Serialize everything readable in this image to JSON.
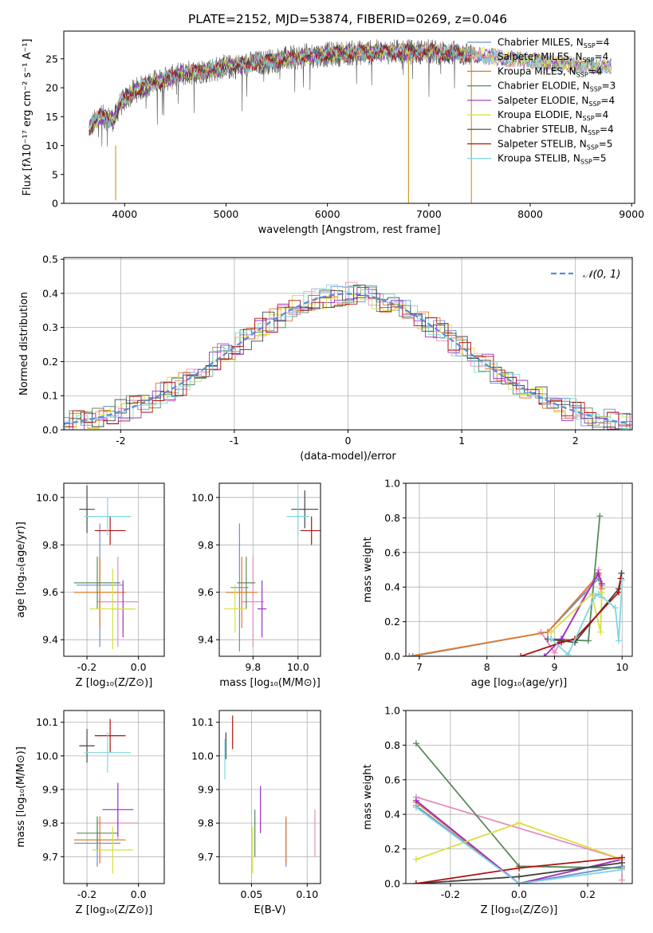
{
  "figure": {
    "title": "PLATE=2152, MJD=53874, FIBERID=0269, z=0.046"
  },
  "chart_data": [
    {
      "id": "spectrum",
      "type": "line",
      "title": "PLATE=2152, MJD=53874, FIBERID=0269, z=0.046",
      "xlabel": "wavelength [Angstrom, rest frame]",
      "ylabel": "Flux [fλ10⁻¹⁷ erg cm⁻² s⁻¹ A⁻¹]",
      "xlim": [
        3400,
        9030
      ],
      "ylim": [
        0,
        29.8
      ],
      "xticks": [
        4000,
        5000,
        6000,
        7000,
        8000,
        9000
      ],
      "yticks": [
        0,
        5,
        10,
        15,
        20,
        25
      ],
      "grid": false,
      "legend_position": "top-right",
      "legend": [
        {
          "text": "Chabrier MILES, N_SSP=4",
          "color": "#6a8fcf"
        },
        {
          "text": "Salpeter MILES, N_SSP=4",
          "color": "#e58ec0"
        },
        {
          "text": "Kroupa MILES, N_SSP=4",
          "color": "#e07b25"
        },
        {
          "text": "Chabrier ELODIE, N_SSP=3",
          "color": "#5a8a5a"
        },
        {
          "text": "Salpeter ELODIE, N_SSP=4",
          "color": "#9b30c8"
        },
        {
          "text": "Kroupa ELODIE, N_SSP=4",
          "color": "#d8e040"
        },
        {
          "text": "Chabrier STELIB, N_SSP=4",
          "color": "#444444"
        },
        {
          "text": "Salpeter STELIB, N_SSP=5",
          "color": "#b01010"
        },
        {
          "text": "Kroupa STELIB, N_SSP=5",
          "color": "#7fd6e0"
        }
      ],
      "continuum": [
        [
          3650,
          13
        ],
        [
          3750,
          15
        ],
        [
          3900,
          14.5
        ],
        [
          3950,
          17
        ],
        [
          4100,
          19.5
        ],
        [
          4300,
          21
        ],
        [
          4600,
          22.5
        ],
        [
          5000,
          23.5
        ],
        [
          5400,
          24.5
        ],
        [
          5800,
          25.5
        ],
        [
          6200,
          26
        ],
        [
          6600,
          26.2
        ],
        [
          7000,
          26.2
        ],
        [
          7400,
          25.8
        ],
        [
          7800,
          25
        ],
        [
          8200,
          24.3
        ],
        [
          8600,
          23.8
        ],
        [
          9000,
          23.5
        ]
      ],
      "model_start": 3650,
      "model_end": 8800,
      "data_end": 7420,
      "glitches": [
        [
          3912,
          0.5,
          10
        ],
        [
          6800,
          0,
          26
        ],
        [
          7420,
          0,
          26
        ]
      ]
    },
    {
      "id": "residual-histogram",
      "type": "histogram",
      "xlabel": "(data-model)/error",
      "ylabel": "Normed distribution",
      "xlim": [
        -2.5,
        2.5
      ],
      "ylim": [
        0,
        0.505
      ],
      "xticks": [
        -2,
        -1,
        0,
        1,
        2
      ],
      "yticks": [
        0.0,
        0.1,
        0.2,
        0.3,
        0.4,
        0.5
      ],
      "bin_width": 0.1,
      "grid": true,
      "legend_position": "top-right",
      "legend": [
        {
          "text": "𝒩(0, 1)",
          "color": "#5b8bd9",
          "dashed": true
        }
      ],
      "normal_curve": {
        "mean": 0,
        "sigma": 1
      }
    },
    {
      "id": "age-vs-z",
      "type": "errorbar",
      "xlabel": "Z [log₁₀(Z/Z⊙)]",
      "ylabel": "age  [log₁₀(age/yr)]",
      "xlim": [
        -0.29,
        0.1
      ],
      "ylim": [
        9.33,
        10.06
      ],
      "xticks": [
        -0.2,
        0.0
      ],
      "yticks": [
        9.4,
        9.6,
        9.8,
        10.0
      ],
      "grid": true,
      "points": [
        {
          "x": -0.15,
          "y": 9.63,
          "xerr": 0.09,
          "yerr": 0.26,
          "color": "#6a8fcf"
        },
        {
          "x": -0.08,
          "y": 9.56,
          "xerr": 0.08,
          "yerr": 0.19,
          "color": "#e58ec0"
        },
        {
          "x": -0.15,
          "y": 9.6,
          "xerr": 0.1,
          "yerr": 0.15,
          "color": "#e07b25"
        },
        {
          "x": -0.16,
          "y": 9.64,
          "xerr": 0.09,
          "yerr": 0.11,
          "color": "#5a8a5a"
        },
        {
          "x": -0.06,
          "y": 9.53,
          "xerr": 0.04,
          "yerr": 0.12,
          "color": "#9b30c8"
        },
        {
          "x": -0.1,
          "y": 9.53,
          "xerr": 0.09,
          "yerr": 0.17,
          "color": "#d8e040"
        },
        {
          "x": -0.2,
          "y": 9.95,
          "xerr": 0.03,
          "yerr": 0.1,
          "color": "#444444"
        },
        {
          "x": -0.11,
          "y": 9.86,
          "xerr": 0.06,
          "yerr": 0.06,
          "color": "#b01010"
        },
        {
          "x": -0.12,
          "y": 9.92,
          "xerr": 0.09,
          "yerr": 0.08,
          "color": "#7fd6e0"
        }
      ]
    },
    {
      "id": "age-vs-mass",
      "type": "errorbar",
      "xlabel": "mass [log₁₀(M/M⊙)]",
      "ylabel": "",
      "xlim": [
        9.65,
        10.1
      ],
      "ylim": [
        9.33,
        10.06
      ],
      "xticks": [
        9.8,
        10.0
      ],
      "yticks": [
        9.4,
        9.6,
        9.8,
        10.0
      ],
      "grid": true,
      "points": [
        {
          "x": 9.74,
          "y": 9.62,
          "xerr": 0.04,
          "yerr": 0.27,
          "color": "#6a8fcf"
        },
        {
          "x": 9.8,
          "y": 9.56,
          "xerr": 0.05,
          "yerr": 0.19,
          "color": "#e58ec0"
        },
        {
          "x": 9.75,
          "y": 9.6,
          "xerr": 0.07,
          "yerr": 0.15,
          "color": "#e07b25"
        },
        {
          "x": 9.77,
          "y": 9.64,
          "xerr": 0.04,
          "yerr": 0.11,
          "color": "#5a8a5a"
        },
        {
          "x": 9.84,
          "y": 9.53,
          "xerr": 0.02,
          "yerr": 0.12,
          "color": "#9b30c8"
        },
        {
          "x": 9.72,
          "y": 9.53,
          "xerr": 0.05,
          "yerr": 0.1,
          "color": "#d8e040"
        },
        {
          "x": 10.03,
          "y": 9.95,
          "xerr": 0.06,
          "yerr": 0.08,
          "color": "#444444"
        },
        {
          "x": 10.06,
          "y": 9.86,
          "xerr": 0.05,
          "yerr": 0.06,
          "color": "#b01010"
        },
        {
          "x": 10.0,
          "y": 9.92,
          "xerr": 0.05,
          "yerr": 0.08,
          "color": "#7fd6e0"
        }
      ]
    },
    {
      "id": "mass-weight-vs-age",
      "type": "line",
      "xlabel": "age  [log₁₀(age/yr)]",
      "ylabel": "mass weight",
      "xlim": [
        6.8,
        10.15
      ],
      "ylim": [
        0,
        1
      ],
      "xticks": [
        7,
        8,
        9,
        10
      ],
      "yticks": [
        0.0,
        0.2,
        0.4,
        0.6,
        0.8,
        1.0
      ],
      "grid": true,
      "series": [
        {
          "color": "#6a8fcf",
          "points": [
            [
              6.9,
              0.0
            ],
            [
              8.9,
              0.14
            ],
            [
              9.65,
              0.45
            ],
            [
              9.7,
              0.41
            ]
          ]
        },
        {
          "color": "#e58ec0",
          "points": [
            [
              8.8,
              0.14
            ],
            [
              9.0,
              0.02
            ],
            [
              9.65,
              0.5
            ],
            [
              9.7,
              0.34
            ]
          ]
        },
        {
          "color": "#e07b25",
          "points": [
            [
              6.85,
              0.0
            ],
            [
              8.9,
              0.14
            ],
            [
              9.65,
              0.47
            ],
            [
              9.7,
              0.39
            ]
          ]
        },
        {
          "color": "#5a8a5a",
          "points": [
            [
              8.95,
              0.1
            ],
            [
              9.5,
              0.09
            ],
            [
              9.67,
              0.81
            ]
          ]
        },
        {
          "color": "#9b30c8",
          "points": [
            [
              8.85,
              0.0
            ],
            [
              9.1,
              0.1
            ],
            [
              9.65,
              0.48
            ],
            [
              9.7,
              0.42
            ]
          ]
        },
        {
          "color": "#d8e040",
          "points": [
            [
              8.95,
              0.14
            ],
            [
              9.55,
              0.36
            ],
            [
              9.68,
              0.14
            ],
            [
              9.7,
              0.37
            ]
          ]
        },
        {
          "color": "#444444",
          "points": [
            [
              8.9,
              0.1
            ],
            [
              9.3,
              0.08
            ],
            [
              9.95,
              0.39
            ],
            [
              9.99,
              0.48
            ]
          ]
        },
        {
          "color": "#b01010",
          "points": [
            [
              8.5,
              0.0
            ],
            [
              9.1,
              0.08
            ],
            [
              9.3,
              0.1
            ],
            [
              9.95,
              0.37
            ],
            [
              9.98,
              0.45
            ]
          ]
        },
        {
          "color": "#7fd6e0",
          "points": [
            [
              8.95,
              0.1
            ],
            [
              9.2,
              0.01
            ],
            [
              9.6,
              0.35
            ],
            [
              9.65,
              0.36
            ],
            [
              9.9,
              0.28
            ],
            [
              9.95,
              0.09
            ],
            [
              10.0,
              0.44
            ]
          ]
        }
      ]
    },
    {
      "id": "mass-vs-z",
      "type": "errorbar",
      "xlabel": "Z [log₁₀(Z/Z⊙)]",
      "ylabel": "mass [log₁₀(M/M⊙)]",
      "xlim": [
        -0.29,
        0.1
      ],
      "ylim": [
        9.62,
        10.135
      ],
      "xticks": [
        -0.2,
        0.0
      ],
      "yticks": [
        9.7,
        9.8,
        9.9,
        10.0,
        10.1
      ],
      "grid": true,
      "points": [
        {
          "x": -0.16,
          "y": 9.74,
          "xerr": 0.09,
          "yerr": 0.07,
          "color": "#6a8fcf"
        },
        {
          "x": -0.08,
          "y": 9.8,
          "xerr": 0.08,
          "yerr": 0.05,
          "color": "#e58ec0"
        },
        {
          "x": -0.15,
          "y": 9.75,
          "xerr": 0.1,
          "yerr": 0.07,
          "color": "#e07b25"
        },
        {
          "x": -0.16,
          "y": 9.77,
          "xerr": 0.08,
          "yerr": 0.05,
          "color": "#5a8a5a"
        },
        {
          "x": -0.08,
          "y": 9.84,
          "xerr": 0.06,
          "yerr": 0.08,
          "color": "#9b30c8"
        },
        {
          "x": -0.1,
          "y": 9.72,
          "xerr": 0.08,
          "yerr": 0.07,
          "color": "#d8e040"
        },
        {
          "x": -0.2,
          "y": 10.03,
          "xerr": 0.03,
          "yerr": 0.05,
          "color": "#444444"
        },
        {
          "x": -0.11,
          "y": 10.06,
          "xerr": 0.06,
          "yerr": 0.05,
          "color": "#b01010"
        },
        {
          "x": -0.12,
          "y": 10.01,
          "xerr": 0.09,
          "yerr": 0.06,
          "color": "#7fd6e0"
        }
      ]
    },
    {
      "id": "mass-vs-ebv",
      "type": "errorbar",
      "xlabel": "E(B-V)",
      "ylabel": "",
      "xlim": [
        0.021,
        0.112
      ],
      "ylim": [
        9.62,
        10.135
      ],
      "xticks": [
        0.05,
        0.1
      ],
      "yticks": [
        9.7,
        9.8,
        9.9,
        10.0,
        10.1
      ],
      "grid": true,
      "points": [
        {
          "x": 0.081,
          "y": 9.74,
          "xerr": 0,
          "yerr": 0.07,
          "color": "#6a8fcf"
        },
        {
          "x": 0.107,
          "y": 9.77,
          "xerr": 0,
          "yerr": 0.07,
          "color": "#e58ec0"
        },
        {
          "x": 0.081,
          "y": 9.75,
          "xerr": 0,
          "yerr": 0.07,
          "color": "#e07b25"
        },
        {
          "x": 0.053,
          "y": 9.77,
          "xerr": 0,
          "yerr": 0.07,
          "color": "#5a8a5a"
        },
        {
          "x": 0.058,
          "y": 9.84,
          "xerr": 0,
          "yerr": 0.07,
          "color": "#9b30c8"
        },
        {
          "x": 0.051,
          "y": 9.72,
          "xerr": 0,
          "yerr": 0.07,
          "color": "#d8e040"
        },
        {
          "x": 0.027,
          "y": 10.03,
          "xerr": 0,
          "yerr": 0.04,
          "color": "#444444"
        },
        {
          "x": 0.033,
          "y": 10.07,
          "xerr": 0,
          "yerr": 0.05,
          "color": "#b01010"
        },
        {
          "x": 0.026,
          "y": 9.99,
          "xerr": 0,
          "yerr": 0.06,
          "color": "#7fd6e0"
        }
      ]
    },
    {
      "id": "mass-weight-vs-z",
      "type": "line",
      "xlabel": "Z [log₁₀(Z/Z⊙)]",
      "ylabel": "mass weight",
      "xlim": [
        -0.33,
        0.33
      ],
      "ylim": [
        0,
        1
      ],
      "xticks": [
        -0.2,
        0.0,
        0.2
      ],
      "yticks": [
        0.0,
        0.2,
        0.4,
        0.6,
        0.8,
        1.0
      ],
      "grid": true,
      "series": [
        {
          "color": "#6a8fcf",
          "points": [
            [
              -0.3,
              0.45
            ],
            [
              0.0,
              0.0
            ],
            [
              0.3,
              0.1
            ]
          ]
        },
        {
          "color": "#e58ec0",
          "points": [
            [
              -0.3,
              0.5
            ],
            [
              0.3,
              0.14
            ],
            [
              0.3,
              0.02
            ]
          ]
        },
        {
          "color": "#e07b25",
          "points": [
            [
              -0.3,
              0.47
            ],
            [
              0.0,
              0.0
            ],
            [
              0.3,
              0.14
            ]
          ]
        },
        {
          "color": "#5a8a5a",
          "points": [
            [
              -0.3,
              0.81
            ],
            [
              0.0,
              0.1
            ],
            [
              0.3,
              0.09
            ]
          ]
        },
        {
          "color": "#9b30c8",
          "points": [
            [
              -0.3,
              0.48
            ],
            [
              0.0,
              0.0
            ],
            [
              0.3,
              0.14
            ]
          ]
        },
        {
          "color": "#d8e040",
          "points": [
            [
              -0.3,
              0.14
            ],
            [
              0.0,
              0.35
            ],
            [
              0.3,
              0.14
            ]
          ]
        },
        {
          "color": "#444444",
          "points": [
            [
              -0.3,
              0.0
            ],
            [
              0.0,
              0.04
            ],
            [
              0.3,
              0.12
            ]
          ]
        },
        {
          "color": "#b01010",
          "points": [
            [
              -0.3,
              0.0
            ],
            [
              0.0,
              0.09
            ],
            [
              0.3,
              0.15
            ]
          ]
        },
        {
          "color": "#7fd6e0",
          "points": [
            [
              -0.3,
              0.44
            ],
            [
              0.0,
              0.0
            ],
            [
              0.3,
              0.08
            ]
          ]
        }
      ]
    }
  ]
}
